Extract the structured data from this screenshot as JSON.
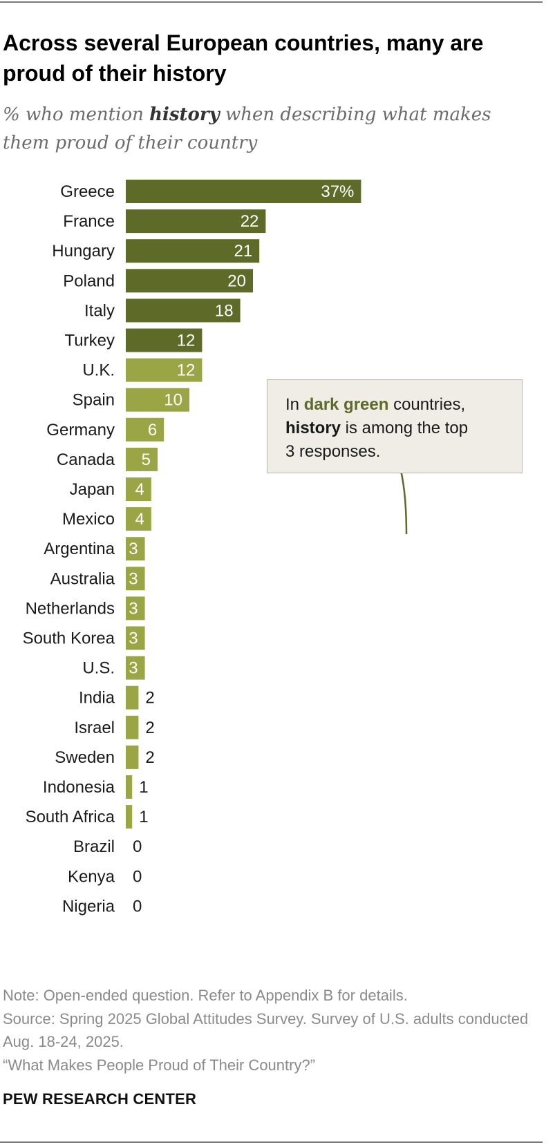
{
  "title": "Across several European countries, many are proud of their history",
  "subtitle": {
    "pre": "% who mention ",
    "bold": "history",
    "post": " when describing what makes them proud of their country"
  },
  "chart_data": {
    "type": "bar",
    "orientation": "horizontal",
    "categories": [
      "Greece",
      "France",
      "Hungary",
      "Poland",
      "Italy",
      "Turkey",
      "U.K.",
      "Spain",
      "Germany",
      "Canada",
      "Japan",
      "Mexico",
      "Argentina",
      "Australia",
      "Netherlands",
      "South Korea",
      "U.S.",
      "India",
      "Israel",
      "Sweden",
      "Indonesia",
      "South Africa",
      "Brazil",
      "Kenya",
      "Nigeria"
    ],
    "values": [
      37,
      22,
      21,
      20,
      18,
      12,
      12,
      10,
      6,
      5,
      4,
      4,
      3,
      3,
      3,
      3,
      3,
      2,
      2,
      2,
      1,
      1,
      0,
      0,
      0
    ],
    "labels": [
      "37%",
      "22",
      "21",
      "20",
      "18",
      "12",
      "12",
      "10",
      "6",
      "5",
      "4",
      "4",
      "3",
      "3",
      "3",
      "3",
      "3",
      "2",
      "2",
      "2",
      "1",
      "1",
      "0",
      "0",
      "0"
    ],
    "highlight": [
      true,
      true,
      true,
      true,
      true,
      true,
      false,
      false,
      false,
      false,
      false,
      false,
      false,
      false,
      false,
      false,
      false,
      false,
      false,
      false,
      false,
      false,
      false,
      false,
      false
    ],
    "colors": {
      "dark": "#5e6a28",
      "light": "#9aa646"
    },
    "xlim": [
      0,
      37
    ],
    "grid": false,
    "legend": "none"
  },
  "callout": {
    "line1_pre": "In ",
    "line1_green": "dark green",
    "line1_post": " countries,",
    "line2_bold": "history",
    "line2_post": " is among the top",
    "line3": "3 responses."
  },
  "notes": {
    "note": "Note: Open-ended question. Refer to Appendix B for details.",
    "source": "Source: Spring 2025 Global Attitudes Survey. Survey of U.S. adults conducted Aug. 18-24, 2025.",
    "report": "“What Makes People Proud of Their Country?”"
  },
  "brand": "PEW RESEARCH CENTER"
}
